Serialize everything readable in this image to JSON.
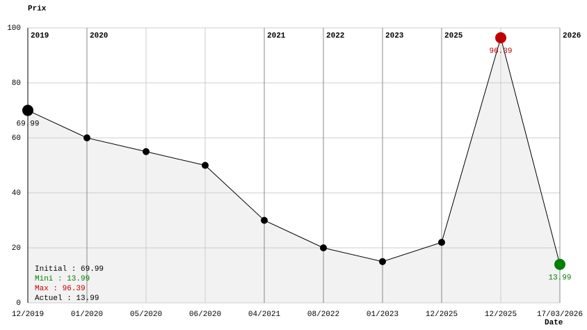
{
  "chart_data": {
    "type": "line",
    "y_label": "Prix",
    "x_label": "Date",
    "categories": [
      "12/2019",
      "01/2020",
      "05/2020",
      "06/2020",
      "04/2021",
      "08/2022",
      "01/2023",
      "12/2025",
      "12/2025",
      "17/03/2026"
    ],
    "year_labels": [
      "2019",
      "2020",
      null,
      null,
      "2021",
      "2022",
      "2023",
      "2025",
      null,
      "2026"
    ],
    "values": [
      69.99,
      60,
      55,
      50,
      30,
      20,
      15,
      22,
      96.39,
      13.99
    ],
    "value_labels": [
      "69.99",
      null,
      null,
      null,
      null,
      null,
      null,
      null,
      "96.39",
      "13.99"
    ],
    "marker_colors": [
      "#000000",
      "#000000",
      "#000000",
      "#000000",
      "#000000",
      "#000000",
      "#000000",
      "#000000",
      "#c00000",
      "#008000"
    ],
    "color": "#000000",
    "area_color": "#f2f2f2",
    "ylim": [
      0,
      100
    ],
    "yticks": [
      0,
      20,
      40,
      60,
      80,
      100
    ],
    "grid": true,
    "summary": [
      {
        "text": "Initial : 69.99",
        "color": "#000000"
      },
      {
        "text": "Mini : 13.99",
        "color": "#008000"
      },
      {
        "text": "Max : 96.39",
        "color": "#c00000"
      },
      {
        "text": "Actuel : 13.99",
        "color": "#000000"
      }
    ]
  }
}
